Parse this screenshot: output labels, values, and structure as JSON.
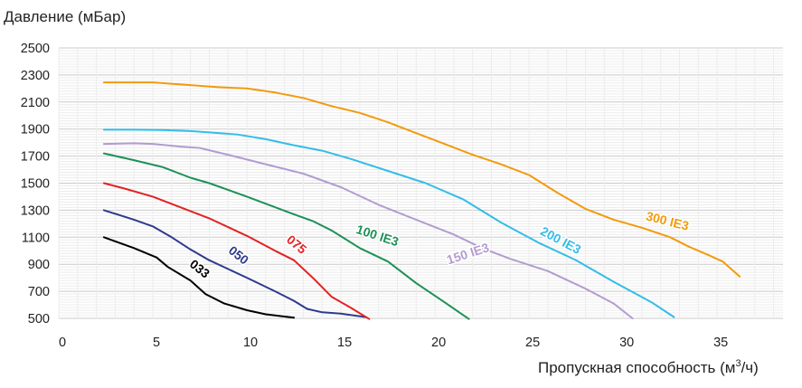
{
  "chart_data": {
    "type": "line",
    "ylabel": "Давление (мБар)",
    "xlabel_main": "Пропускная способность (м",
    "xlabel_sup": "3",
    "xlabel_tail": "/ч)",
    "xlim": [
      0,
      38.5
    ],
    "ylim": [
      500,
      2500
    ],
    "xticks": [
      0,
      5,
      10,
      15,
      20,
      25,
      30,
      35
    ],
    "yticks": [
      500,
      700,
      900,
      1100,
      1300,
      1500,
      1700,
      1900,
      2100,
      2300,
      2500
    ],
    "grid": true,
    "series": [
      {
        "name": "033",
        "color": "#000000",
        "x": [
          2.4,
          4.0,
          5.2,
          5.8,
          7.0,
          7.8,
          8.8,
          10.0,
          11.0,
          12.5
        ],
        "y": [
          1100,
          1020,
          950,
          880,
          780,
          680,
          610,
          560,
          530,
          505
        ]
      },
      {
        "name": "050",
        "color": "#2e3a8c",
        "x": [
          2.4,
          4.0,
          5.0,
          6.0,
          7.0,
          8.0,
          10.0,
          11.5,
          12.5,
          13.2,
          14.0,
          15.0,
          16.3
        ],
        "y": [
          1300,
          1230,
          1180,
          1100,
          1010,
          930,
          800,
          700,
          630,
          570,
          545,
          535,
          510
        ]
      },
      {
        "name": "075",
        "color": "#e32222",
        "x": [
          2.4,
          3.5,
          5.0,
          6.5,
          8.0,
          10.0,
          11.5,
          12.5,
          13.5,
          14.5,
          15.5,
          16.5
        ],
        "y": [
          1500,
          1460,
          1400,
          1320,
          1240,
          1110,
          1000,
          930,
          800,
          660,
          580,
          495
        ]
      },
      {
        "name": "100 IE3",
        "color": "#1e9058",
        "x": [
          2.4,
          4.0,
          5.5,
          7.0,
          8.0,
          10.0,
          12.5,
          13.5,
          14.5,
          16.0,
          17.5,
          19.0,
          20.5,
          21.8
        ],
        "y": [
          1720,
          1670,
          1620,
          1540,
          1500,
          1400,
          1270,
          1220,
          1150,
          1020,
          920,
          760,
          620,
          495
        ]
      },
      {
        "name": "150 IE3",
        "color": "#b39cd0",
        "x": [
          2.4,
          4.0,
          5.0,
          6.5,
          7.5,
          9.0,
          11.0,
          13.0,
          15.0,
          17.0,
          19.0,
          21.0,
          22.5,
          24.0,
          26.0,
          28.0,
          29.5,
          30.5
        ],
        "y": [
          1790,
          1795,
          1790,
          1770,
          1760,
          1710,
          1640,
          1570,
          1470,
          1340,
          1230,
          1120,
          1020,
          940,
          850,
          720,
          610,
          500
        ]
      },
      {
        "name": "200 IE3",
        "color": "#33bde8",
        "x": [
          2.4,
          4.0,
          5.5,
          7.0,
          8.0,
          9.5,
          11.0,
          12.5,
          14.0,
          15.5,
          17.5,
          19.5,
          21.5,
          23.5,
          25.5,
          27.5,
          29.5,
          31.5,
          32.7
        ],
        "y": [
          1895,
          1895,
          1893,
          1885,
          1875,
          1860,
          1825,
          1780,
          1740,
          1680,
          1590,
          1500,
          1380,
          1210,
          1060,
          930,
          770,
          620,
          510
        ]
      },
      {
        "name": "300 IE3",
        "color": "#f29a0c",
        "x": [
          2.4,
          3.5,
          5.0,
          6.5,
          7.5,
          8.5,
          10.0,
          11.5,
          13.0,
          14.5,
          16.0,
          17.5,
          19.0,
          20.5,
          22.0,
          23.5,
          25.0,
          26.5,
          28.0,
          29.5,
          31.0,
          32.5,
          33.5,
          34.5,
          35.3,
          36.2
        ],
        "y": [
          2245,
          2245,
          2245,
          2230,
          2220,
          2210,
          2200,
          2170,
          2130,
          2070,
          2020,
          1950,
          1870,
          1790,
          1710,
          1640,
          1560,
          1430,
          1310,
          1230,
          1170,
          1100,
          1030,
          970,
          920,
          810
        ]
      }
    ],
    "labels": [
      {
        "text": "033",
        "color": "#000000"
      },
      {
        "text": "050",
        "color": "#2e3a8c"
      },
      {
        "text": "075",
        "color": "#e32222"
      },
      {
        "text": "100 IE3",
        "color": "#1e9058"
      },
      {
        "text": "150 IE3",
        "color": "#b39cd0"
      },
      {
        "text": "200 IE3",
        "color": "#33bde8"
      },
      {
        "text": "300 IE3",
        "color": "#f29a0c"
      }
    ]
  }
}
